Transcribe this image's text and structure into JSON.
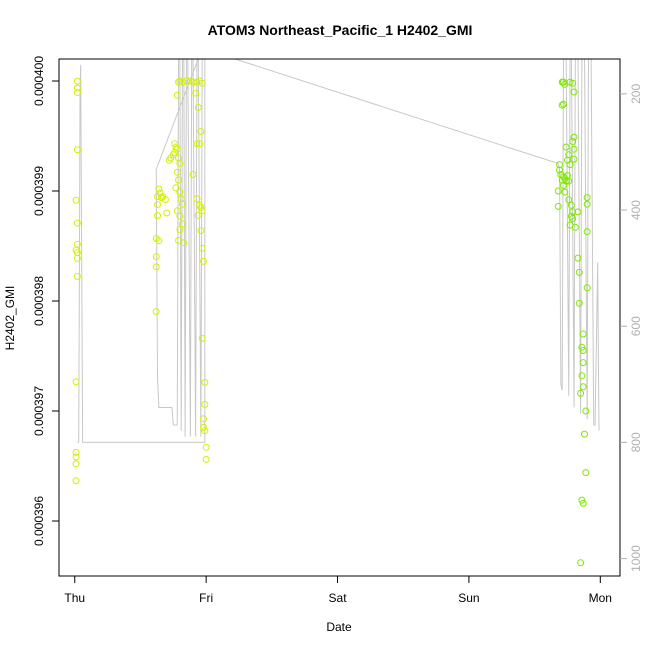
{
  "chart_data": {
    "type": "scatter",
    "title": "ATOM3 Northeast_Pacific_1 H2402_GMI",
    "xlabel": "Date",
    "ylabel": "H2402_GMI",
    "x_ticks": [
      "Thu",
      "Fri",
      "Sat",
      "Sun",
      "Mon"
    ],
    "xlim_days": [
      -0.12,
      4.15
    ],
    "ylim": [
      0.0003955,
      0.0004002
    ],
    "y_ticks": [
      "0.000396",
      "0.000397",
      "0.000398",
      "0.000399",
      "0.000400"
    ],
    "y_tick_values": [
      0.000396,
      0.000397,
      0.000398,
      0.000399,
      0.0004
    ],
    "right_axis": {
      "ticks": [
        "200",
        "400",
        "600",
        "800",
        "1000"
      ],
      "tick_values": [
        200,
        400,
        600,
        800,
        1000
      ],
      "lim": [
        140,
        1030
      ],
      "color": "#b0b0b0"
    },
    "grid": false,
    "legend": "none",
    "colors": {
      "points_early": "#d4f000",
      "points_late": "#7fe800",
      "line": "#c8c8c8",
      "axes": "#000000"
    },
    "altitude_line": [
      [
        0.02,
        800
      ],
      [
        0.03,
        800
      ],
      [
        0.035,
        520
      ],
      [
        0.04,
        200
      ],
      [
        0.045,
        150
      ],
      [
        0.06,
        800
      ],
      [
        0.99,
        800
      ],
      [
        0.99,
        110
      ],
      [
        0.62,
        330
      ],
      [
        0.63,
        690
      ],
      [
        0.64,
        740
      ],
      [
        0.74,
        740
      ],
      [
        0.75,
        770
      ],
      [
        0.78,
        770
      ],
      [
        0.79,
        130
      ],
      [
        0.8,
        130
      ],
      [
        0.81,
        780
      ],
      [
        0.82,
        130
      ],
      [
        0.83,
        130
      ],
      [
        0.84,
        790
      ],
      [
        0.85,
        130
      ],
      [
        0.86,
        130
      ],
      [
        0.88,
        790
      ],
      [
        0.89,
        130
      ],
      [
        0.9,
        130
      ],
      [
        0.92,
        790
      ],
      [
        0.93,
        130
      ],
      [
        0.94,
        130
      ],
      [
        0.96,
        790
      ],
      [
        0.97,
        130
      ],
      [
        0.98,
        130
      ],
      [
        0.99,
        110
      ],
      [
        1.22,
        140
      ],
      [
        3.68,
        320
      ],
      [
        3.69,
        330
      ],
      [
        3.7,
        700
      ],
      [
        3.71,
        710
      ],
      [
        3.72,
        130
      ],
      [
        3.74,
        130
      ],
      [
        3.76,
        720
      ],
      [
        3.77,
        130
      ],
      [
        3.78,
        130
      ],
      [
        3.8,
        740
      ],
      [
        3.81,
        130
      ],
      [
        3.83,
        130
      ],
      [
        3.85,
        750
      ],
      [
        3.86,
        130
      ],
      [
        3.88,
        130
      ],
      [
        3.9,
        760
      ],
      [
        3.91,
        130
      ],
      [
        3.93,
        130
      ],
      [
        3.95,
        770
      ],
      [
        3.96,
        770
      ],
      [
        3.98,
        490
      ],
      [
        3.99,
        780
      ]
    ],
    "points": [
      {
        "x": 0.02,
        "y": 0.000399999
      },
      {
        "x": 0.02,
        "y": 0.000399935
      },
      {
        "x": 0.02,
        "y": 0.000399895
      },
      {
        "x": 0.02,
        "y": 0.000399375
      },
      {
        "x": 0.01,
        "y": 0.000398916
      },
      {
        "x": 0.02,
        "y": 0.000398708
      },
      {
        "x": 0.02,
        "y": 0.000398515
      },
      {
        "x": 0.01,
        "y": 0.000398462
      },
      {
        "x": 0.02,
        "y": 0.00039844
      },
      {
        "x": 0.02,
        "y": 0.000398388
      },
      {
        "x": 0.02,
        "y": 0.000398224
      },
      {
        "x": 0.01,
        "y": 0.000397266
      },
      {
        "x": 0.01,
        "y": 0.000396624
      },
      {
        "x": 0.01,
        "y": 0.000396583
      },
      {
        "x": 0.01,
        "y": 0.000396521
      },
      {
        "x": 0.01,
        "y": 0.000396366
      },
      {
        "x": 0.62,
        "y": 0.000397903
      },
      {
        "x": 0.62,
        "y": 0.00039831
      },
      {
        "x": 0.62,
        "y": 0.000398403
      },
      {
        "x": 0.62,
        "y": 0.000398568
      },
      {
        "x": 0.64,
        "y": 0.000398548
      },
      {
        "x": 0.63,
        "y": 0.000398776
      },
      {
        "x": 0.63,
        "y": 0.000398877
      },
      {
        "x": 0.63,
        "y": 0.00039895
      },
      {
        "x": 0.64,
        "y": 0.000399018
      },
      {
        "x": 0.65,
        "y": 0.000398982
      },
      {
        "x": 0.66,
        "y": 0.00039894
      },
      {
        "x": 0.67,
        "y": 0.00039895
      },
      {
        "x": 0.69,
        "y": 0.000398923
      },
      {
        "x": 0.7,
        "y": 0.0003988
      },
      {
        "x": 0.72,
        "y": 0.00039928
      },
      {
        "x": 0.73,
        "y": 0.0003993
      },
      {
        "x": 0.75,
        "y": 0.00039933
      },
      {
        "x": 0.76,
        "y": 0.00039935
      },
      {
        "x": 0.76,
        "y": 0.00039943
      },
      {
        "x": 0.77,
        "y": 0.0003994
      },
      {
        "x": 0.78,
        "y": 0.00039938
      },
      {
        "x": 0.79,
        "y": 0.0003993
      },
      {
        "x": 0.8,
        "y": 0.00039925
      },
      {
        "x": 0.78,
        "y": 0.00039917
      },
      {
        "x": 0.79,
        "y": 0.0003991
      },
      {
        "x": 0.77,
        "y": 0.00039903
      },
      {
        "x": 0.8,
        "y": 0.00039899
      },
      {
        "x": 0.81,
        "y": 0.00039893
      },
      {
        "x": 0.82,
        "y": 0.00039888
      },
      {
        "x": 0.78,
        "y": 0.00039882
      },
      {
        "x": 0.8,
        "y": 0.00039877
      },
      {
        "x": 0.82,
        "y": 0.0003987
      },
      {
        "x": 0.8,
        "y": 0.00039865
      },
      {
        "x": 0.79,
        "y": 0.00039855
      },
      {
        "x": 0.83,
        "y": 0.00039853
      },
      {
        "x": 0.78,
        "y": 0.00039987
      },
      {
        "x": 0.79,
        "y": 0.00039999
      },
      {
        "x": 0.8,
        "y": 0.0004
      },
      {
        "x": 0.82,
        "y": 0.00039999
      },
      {
        "x": 0.85,
        "y": 0.0004
      },
      {
        "x": 0.88,
        "y": 0.0004
      },
      {
        "x": 0.9,
        "y": 0.00039999
      },
      {
        "x": 0.93,
        "y": 0.00039999
      },
      {
        "x": 0.95,
        "y": 0.0004
      },
      {
        "x": 0.97,
        "y": 0.00039998
      },
      {
        "x": 0.92,
        "y": 0.00039989
      },
      {
        "x": 0.94,
        "y": 0.00039976
      },
      {
        "x": 0.96,
        "y": 0.00039954
      },
      {
        "x": 0.93,
        "y": 0.00039943
      },
      {
        "x": 0.95,
        "y": 0.00039943
      },
      {
        "x": 0.9,
        "y": 0.00039915
      },
      {
        "x": 0.93,
        "y": 0.00039893
      },
      {
        "x": 0.95,
        "y": 0.00039887
      },
      {
        "x": 0.96,
        "y": 0.00039885
      },
      {
        "x": 0.97,
        "y": 0.00039882
      },
      {
        "x": 0.94,
        "y": 0.00039878
      },
      {
        "x": 0.96,
        "y": 0.00039864
      },
      {
        "x": 0.97,
        "y": 0.00039848
      },
      {
        "x": 0.98,
        "y": 0.00039836
      },
      {
        "x": 0.97,
        "y": 0.00039766
      },
      {
        "x": 0.99,
        "y": 0.00039726
      },
      {
        "x": 0.99,
        "y": 0.00039706
      },
      {
        "x": 0.98,
        "y": 0.00039693
      },
      {
        "x": 0.98,
        "y": 0.00039685
      },
      {
        "x": 0.99,
        "y": 0.00039682
      },
      {
        "x": 1.0,
        "y": 0.00039667
      },
      {
        "x": 1.0,
        "y": 0.00039656
      },
      {
        "x": 3.69,
        "y": 0.00039924
      },
      {
        "x": 3.69,
        "y": 0.00039919
      },
      {
        "x": 3.68,
        "y": 0.000399
      },
      {
        "x": 3.68,
        "y": 0.00039886
      },
      {
        "x": 3.7,
        "y": 0.00039915
      },
      {
        "x": 3.71,
        "y": 0.0003991
      },
      {
        "x": 3.72,
        "y": 0.00039913
      },
      {
        "x": 3.73,
        "y": 0.00039911
      },
      {
        "x": 3.74,
        "y": 0.00039909
      },
      {
        "x": 3.75,
        "y": 0.00039914
      },
      {
        "x": 3.76,
        "y": 0.00039909
      },
      {
        "x": 3.72,
        "y": 0.00039905
      },
      {
        "x": 3.73,
        "y": 0.00039899
      },
      {
        "x": 3.71,
        "y": 0.00039999
      },
      {
        "x": 3.72,
        "y": 0.00039999
      },
      {
        "x": 3.73,
        "y": 0.00039997
      },
      {
        "x": 3.71,
        "y": 0.00039978
      },
      {
        "x": 3.72,
        "y": 0.00039979
      },
      {
        "x": 3.74,
        "y": 0.0003994
      },
      {
        "x": 3.75,
        "y": 0.00039928
      },
      {
        "x": 3.76,
        "y": 0.00039933
      },
      {
        "x": 3.77,
        "y": 0.00039924
      },
      {
        "x": 3.79,
        "y": 0.00039945
      },
      {
        "x": 3.8,
        "y": 0.00039949
      },
      {
        "x": 3.8,
        "y": 0.00039938
      },
      {
        "x": 3.8,
        "y": 0.00039929
      },
      {
        "x": 3.77,
        "y": 0.00039999
      },
      {
        "x": 3.79,
        "y": 0.00039998
      },
      {
        "x": 3.8,
        "y": 0.0003999
      },
      {
        "x": 3.76,
        "y": 0.00039892
      },
      {
        "x": 3.78,
        "y": 0.00039887
      },
      {
        "x": 3.78,
        "y": 0.00039877
      },
      {
        "x": 3.79,
        "y": 0.00039875
      },
      {
        "x": 3.77,
        "y": 0.00039869
      },
      {
        "x": 3.79,
        "y": 0.00039881
      },
      {
        "x": 3.83,
        "y": 0.00039881
      },
      {
        "x": 3.81,
        "y": 0.00039867
      },
      {
        "x": 3.9,
        "y": 0.00039894
      },
      {
        "x": 3.9,
        "y": 0.00039888
      },
      {
        "x": 3.9,
        "y": 0.00039863
      },
      {
        "x": 3.83,
        "y": 0.00039839
      },
      {
        "x": 3.84,
        "y": 0.00039826
      },
      {
        "x": 3.9,
        "y": 0.00039812
      },
      {
        "x": 3.84,
        "y": 0.00039798
      },
      {
        "x": 3.87,
        "y": 0.0003977
      },
      {
        "x": 3.86,
        "y": 0.00039758
      },
      {
        "x": 3.85,
        "y": 0.00039716
      },
      {
        "x": 3.87,
        "y": 0.00039755
      },
      {
        "x": 3.87,
        "y": 0.00039744
      },
      {
        "x": 3.86,
        "y": 0.00039732
      },
      {
        "x": 3.87,
        "y": 0.00039722
      },
      {
        "x": 3.89,
        "y": 0.000397
      },
      {
        "x": 3.88,
        "y": 0.00039679
      },
      {
        "x": 3.89,
        "y": 0.00039644
      },
      {
        "x": 3.86,
        "y": 0.00039619
      },
      {
        "x": 3.87,
        "y": 0.00039616
      },
      {
        "x": 3.85,
        "y": 0.00039562
      }
    ]
  }
}
